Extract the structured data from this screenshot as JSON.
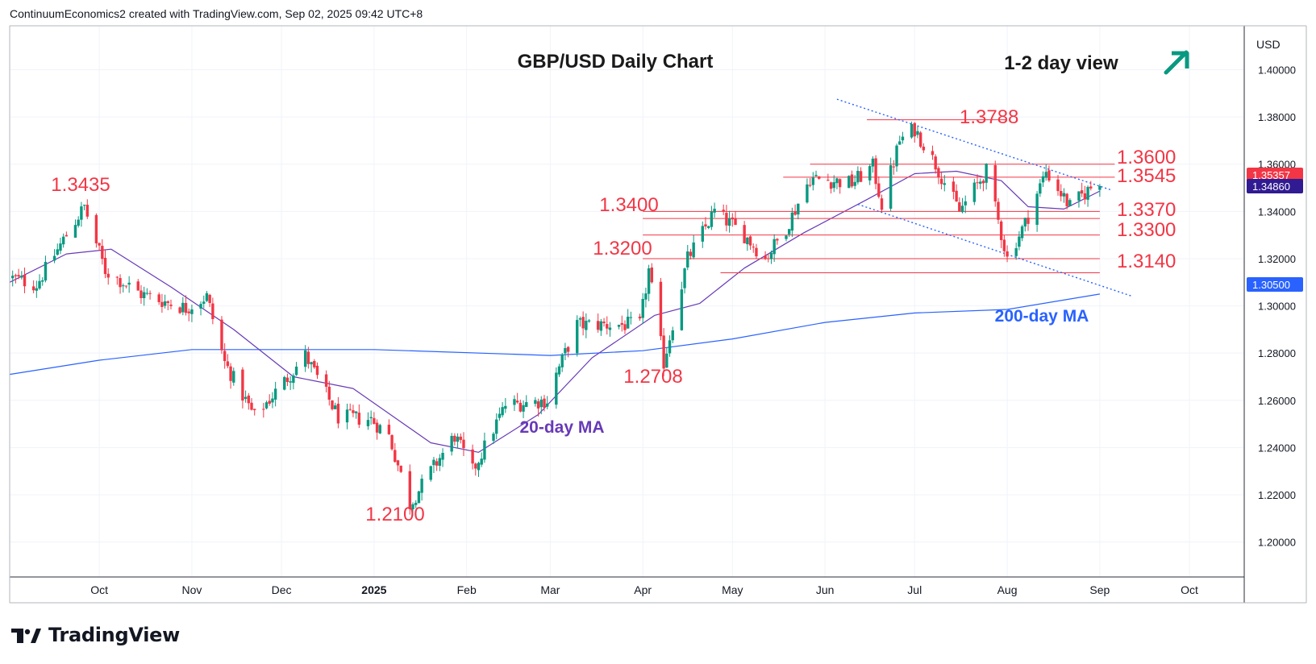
{
  "header": {
    "credit": "ContinuumEconomics2 created with TradingView.com, Sep 02, 2025 09:42 UTC+8"
  },
  "footer": {
    "brand_name": "TradingView",
    "brand_icon": "tradingview-logo-icon"
  },
  "chart_data": {
    "type": "candlestick",
    "title": "GBP/USD Daily Chart",
    "subtitle": "1-2 day view",
    "view_icon": "arrow-up-right-icon",
    "currency_label": "USD",
    "ylim": [
      1.1852,
      1.4186
    ],
    "y_ticks": [
      "1.40000",
      "1.38000",
      "1.36000",
      "1.34000",
      "1.32000",
      "1.30000",
      "1.28000",
      "1.26000",
      "1.24000",
      "1.22000",
      "1.20000"
    ],
    "x_range": [
      "2024-09-01",
      "2025-10-01"
    ],
    "x_ticks": [
      {
        "label": "Oct",
        "date": "2024-10-01"
      },
      {
        "label": "Nov",
        "date": "2024-11-01"
      },
      {
        "label": "Dec",
        "date": "2024-12-01"
      },
      {
        "label": "2025",
        "date": "2025-01-01",
        "bold": true
      },
      {
        "label": "Feb",
        "date": "2025-02-01"
      },
      {
        "label": "Mar",
        "date": "2025-03-01"
      },
      {
        "label": "Apr",
        "date": "2025-04-01"
      },
      {
        "label": "May",
        "date": "2025-05-01"
      },
      {
        "label": "Jun",
        "date": "2025-06-01"
      },
      {
        "label": "Jul",
        "date": "2025-07-01"
      },
      {
        "label": "Aug",
        "date": "2025-08-01"
      },
      {
        "label": "Sep",
        "date": "2025-09-01"
      },
      {
        "label": "Oct",
        "date": "2025-10-01"
      }
    ],
    "price_path": [
      [
        "2024-09-01",
        1.312
      ],
      [
        "2024-09-10",
        1.309
      ],
      [
        "2024-09-20",
        1.33
      ],
      [
        "2024-09-26",
        1.342
      ],
      [
        "2024-10-03",
        1.315
      ],
      [
        "2024-10-15",
        1.305
      ],
      [
        "2024-10-30",
        1.299
      ],
      [
        "2024-11-06",
        1.304
      ],
      [
        "2024-11-12",
        1.276
      ],
      [
        "2024-11-22",
        1.253
      ],
      [
        "2024-12-02",
        1.268
      ],
      [
        "2024-12-09",
        1.279
      ],
      [
        "2024-12-20",
        1.253
      ],
      [
        "2024-12-31",
        1.252
      ],
      [
        "2025-01-06",
        1.245
      ],
      [
        "2025-01-13",
        1.216
      ],
      [
        "2025-01-20",
        1.23
      ],
      [
        "2025-01-28",
        1.245
      ],
      [
        "2025-02-03",
        1.23
      ],
      [
        "2025-02-14",
        1.258
      ],
      [
        "2025-02-28",
        1.26
      ],
      [
        "2025-03-03",
        1.271
      ],
      [
        "2025-03-10",
        1.292
      ],
      [
        "2025-03-31",
        1.292
      ],
      [
        "2025-04-03",
        1.315
      ],
      [
        "2025-04-08",
        1.276
      ],
      [
        "2025-04-16",
        1.32
      ],
      [
        "2025-04-25",
        1.34
      ],
      [
        "2025-05-05",
        1.33
      ],
      [
        "2025-05-12",
        1.32
      ],
      [
        "2025-05-19",
        1.333
      ],
      [
        "2025-05-27",
        1.354
      ],
      [
        "2025-06-10",
        1.352
      ],
      [
        "2025-06-17",
        1.359
      ],
      [
        "2025-06-20",
        1.343
      ],
      [
        "2025-06-26",
        1.37
      ],
      [
        "2025-07-01",
        1.375
      ],
      [
        "2025-07-08",
        1.36
      ],
      [
        "2025-07-16",
        1.34
      ],
      [
        "2025-07-25",
        1.357
      ],
      [
        "2025-08-01",
        1.32
      ],
      [
        "2025-08-07",
        1.335
      ],
      [
        "2025-08-14",
        1.357
      ],
      [
        "2025-08-22",
        1.342
      ],
      [
        "2025-09-01",
        1.3535
      ]
    ],
    "moving_averages": [
      {
        "name": "20-day MA",
        "color": "#673ab7",
        "points": [
          [
            "2024-09-01",
            1.31
          ],
          [
            "2024-09-20",
            1.322
          ],
          [
            "2024-10-05",
            1.324
          ],
          [
            "2024-10-25",
            1.308
          ],
          [
            "2024-11-15",
            1.29
          ],
          [
            "2024-12-05",
            1.27
          ],
          [
            "2024-12-25",
            1.265
          ],
          [
            "2025-01-20",
            1.242
          ],
          [
            "2025-02-05",
            1.238
          ],
          [
            "2025-02-25",
            1.254
          ],
          [
            "2025-03-15",
            1.278
          ],
          [
            "2025-04-05",
            1.296
          ],
          [
            "2025-04-20",
            1.301
          ],
          [
            "2025-05-05",
            1.316
          ],
          [
            "2025-05-25",
            1.331
          ],
          [
            "2025-06-15",
            1.345
          ],
          [
            "2025-07-01",
            1.356
          ],
          [
            "2025-07-15",
            1.357
          ],
          [
            "2025-07-30",
            1.353
          ],
          [
            "2025-08-08",
            1.342
          ],
          [
            "2025-08-20",
            1.341
          ],
          [
            "2025-09-01",
            1.3486
          ]
        ]
      },
      {
        "name": "200-day MA",
        "color": "#2962ff",
        "points": [
          [
            "2024-09-01",
            1.271
          ],
          [
            "2024-10-01",
            1.277
          ],
          [
            "2024-11-01",
            1.2815
          ],
          [
            "2025-01-01",
            1.2815
          ],
          [
            "2025-03-01",
            1.279
          ],
          [
            "2025-04-01",
            1.281
          ],
          [
            "2025-05-01",
            1.286
          ],
          [
            "2025-06-01",
            1.293
          ],
          [
            "2025-07-01",
            1.297
          ],
          [
            "2025-08-01",
            1.2985
          ],
          [
            "2025-09-01",
            1.305
          ]
        ]
      }
    ],
    "price_levels": [
      {
        "label": "1.3788",
        "value": 1.3788,
        "from": "2025-06-15",
        "to": "2025-08-01"
      },
      {
        "label": "1.3600",
        "value": 1.36,
        "from": "2025-05-27",
        "to": "2025-09-06"
      },
      {
        "label": "1.3545",
        "value": 1.3545,
        "from": "2025-05-18",
        "to": "2025-09-06"
      },
      {
        "label": "1.3400",
        "value": 1.34,
        "from": "2025-04-01",
        "to": "2025-09-01"
      },
      {
        "label": "1.3370",
        "value": 1.337,
        "from": "2025-04-01",
        "to": "2025-09-01"
      },
      {
        "label": "1.3300",
        "value": 1.33,
        "from": "2025-04-01",
        "to": "2025-09-01"
      },
      {
        "label": "1.3200",
        "value": 1.32,
        "from": "2025-04-01",
        "to": "2025-09-01"
      },
      {
        "label": "1.3140",
        "value": 1.314,
        "from": "2025-04-27",
        "to": "2025-09-01"
      }
    ],
    "annotations": [
      {
        "text": "1.3435",
        "date": "2024-09-26",
        "value": 1.3435
      },
      {
        "text": "1.2100",
        "date": "2025-01-13",
        "value": 1.21
      },
      {
        "text": "1.2708",
        "date": "2025-04-08",
        "value": 1.2708
      }
    ],
    "trend_lines": [
      {
        "points": [
          [
            "2025-06-05",
            1.3875
          ],
          [
            "2025-09-05",
            1.349
          ]
        ]
      },
      {
        "points": [
          [
            "2025-06-12",
            1.343
          ],
          [
            "2025-09-12",
            1.304
          ]
        ]
      }
    ],
    "ma_labels": [
      "20-day MA",
      "200-day MA"
    ],
    "price_badges": [
      {
        "label": "1.35357",
        "value": 1.35357,
        "color": "#f23645"
      },
      {
        "label": "1.34860",
        "value": 1.3486,
        "color": "#311b92"
      },
      {
        "label": "1.30500",
        "value": 1.305,
        "color": "#2962ff"
      }
    ],
    "colors": {
      "up": "#089981",
      "down": "#f23645",
      "level": "#f23645",
      "trend": "#2962ff"
    },
    "grid": true
  }
}
